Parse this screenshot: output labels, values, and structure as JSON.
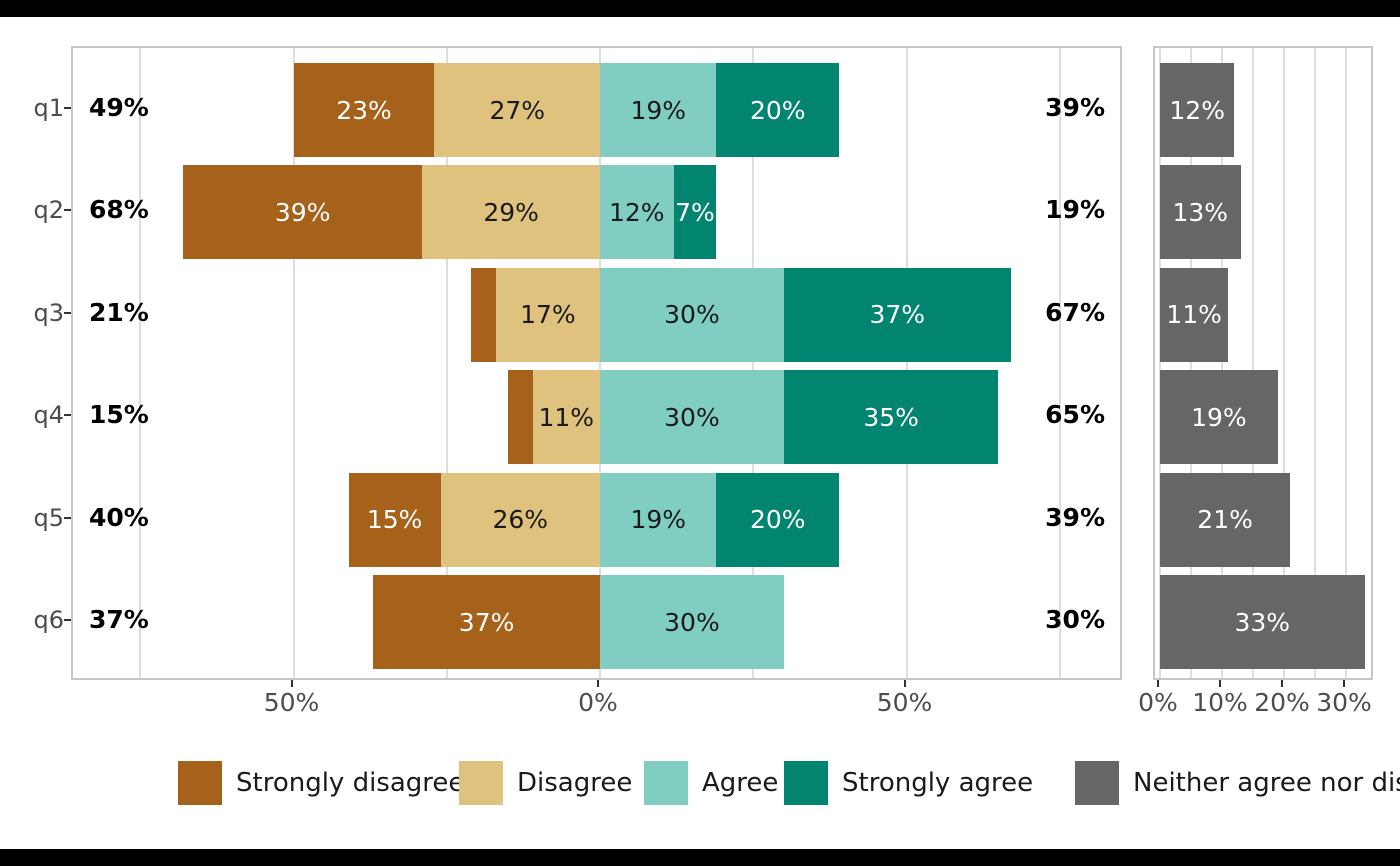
{
  "figure": {
    "background_color": "#ffffff",
    "frame_bar_color": "#000000"
  },
  "chart_data": [
    {
      "id": "diverging-likert-chart",
      "type": "bar",
      "orientation": "horizontal",
      "title": "",
      "categories": [
        "q1",
        "q2",
        "q3",
        "q4",
        "q5",
        "q6"
      ],
      "series": [
        {
          "name": "Strongly disagree",
          "color": "#a6611a",
          "label_color": "#ffffff",
          "side": "left",
          "values": [
            23,
            39,
            4,
            4,
            15,
            37
          ]
        },
        {
          "name": "Disagree",
          "color": "#dfc27d",
          "label_color": "#1a1a1a",
          "side": "left",
          "values": [
            27,
            29,
            17,
            11,
            26,
            0
          ]
        },
        {
          "name": "Agree",
          "color": "#80cdc1",
          "label_color": "#1a1a1a",
          "side": "right",
          "values": [
            19,
            12,
            30,
            30,
            19,
            30
          ]
        },
        {
          "name": "Strongly agree",
          "color": "#018571",
          "label_color": "#ffffff",
          "side": "right",
          "values": [
            20,
            7,
            37,
            35,
            20,
            0
          ]
        }
      ],
      "left_totals": [
        "49%",
        "68%",
        "21%",
        "15%",
        "40%",
        "37%"
      ],
      "right_totals": [
        "39%",
        "19%",
        "67%",
        "65%",
        "39%",
        "30%"
      ],
      "x_ticks": [
        {
          "value": -50,
          "label": "50%"
        },
        {
          "value": 0,
          "label": "0%"
        },
        {
          "value": 50,
          "label": "50%"
        }
      ],
      "gridline_values": [
        -75,
        -50,
        -25,
        0,
        25,
        50,
        75
      ],
      "xlim": [
        -86,
        85.6
      ],
      "value_suffix": "%",
      "min_labeled_value": 5,
      "grid": true,
      "legend_position": "bottom"
    },
    {
      "id": "neither-chart",
      "type": "bar",
      "orientation": "horizontal",
      "title": "",
      "categories": [
        "q1",
        "q2",
        "q3",
        "q4",
        "q5",
        "q6"
      ],
      "series": [
        {
          "name": "Neither agree nor disagree",
          "color": "#666666",
          "label_color": "#ffffff",
          "side": "right",
          "values": [
            12,
            13,
            11,
            19,
            21,
            33
          ]
        }
      ],
      "x_ticks": [
        {
          "value": 0,
          "label": "0%"
        },
        {
          "value": 10,
          "label": "10%"
        },
        {
          "value": 20,
          "label": "20%"
        },
        {
          "value": 30,
          "label": "30%"
        }
      ],
      "gridline_values": [
        0,
        5,
        10,
        15,
        20,
        25,
        30
      ],
      "xlim": [
        -0.8,
        34
      ],
      "value_suffix": "%",
      "min_labeled_value": 5,
      "grid": true
    }
  ],
  "legend": {
    "items": [
      {
        "label": "Strongly disagree",
        "color": "#a6611a"
      },
      {
        "label": "Disagree",
        "color": "#dfc27d"
      },
      {
        "label": "Agree",
        "color": "#80cdc1"
      },
      {
        "label": "Strongly agree",
        "color": "#018571"
      },
      {
        "label": "Neither agree nor disagree",
        "color": "#666666"
      }
    ]
  }
}
